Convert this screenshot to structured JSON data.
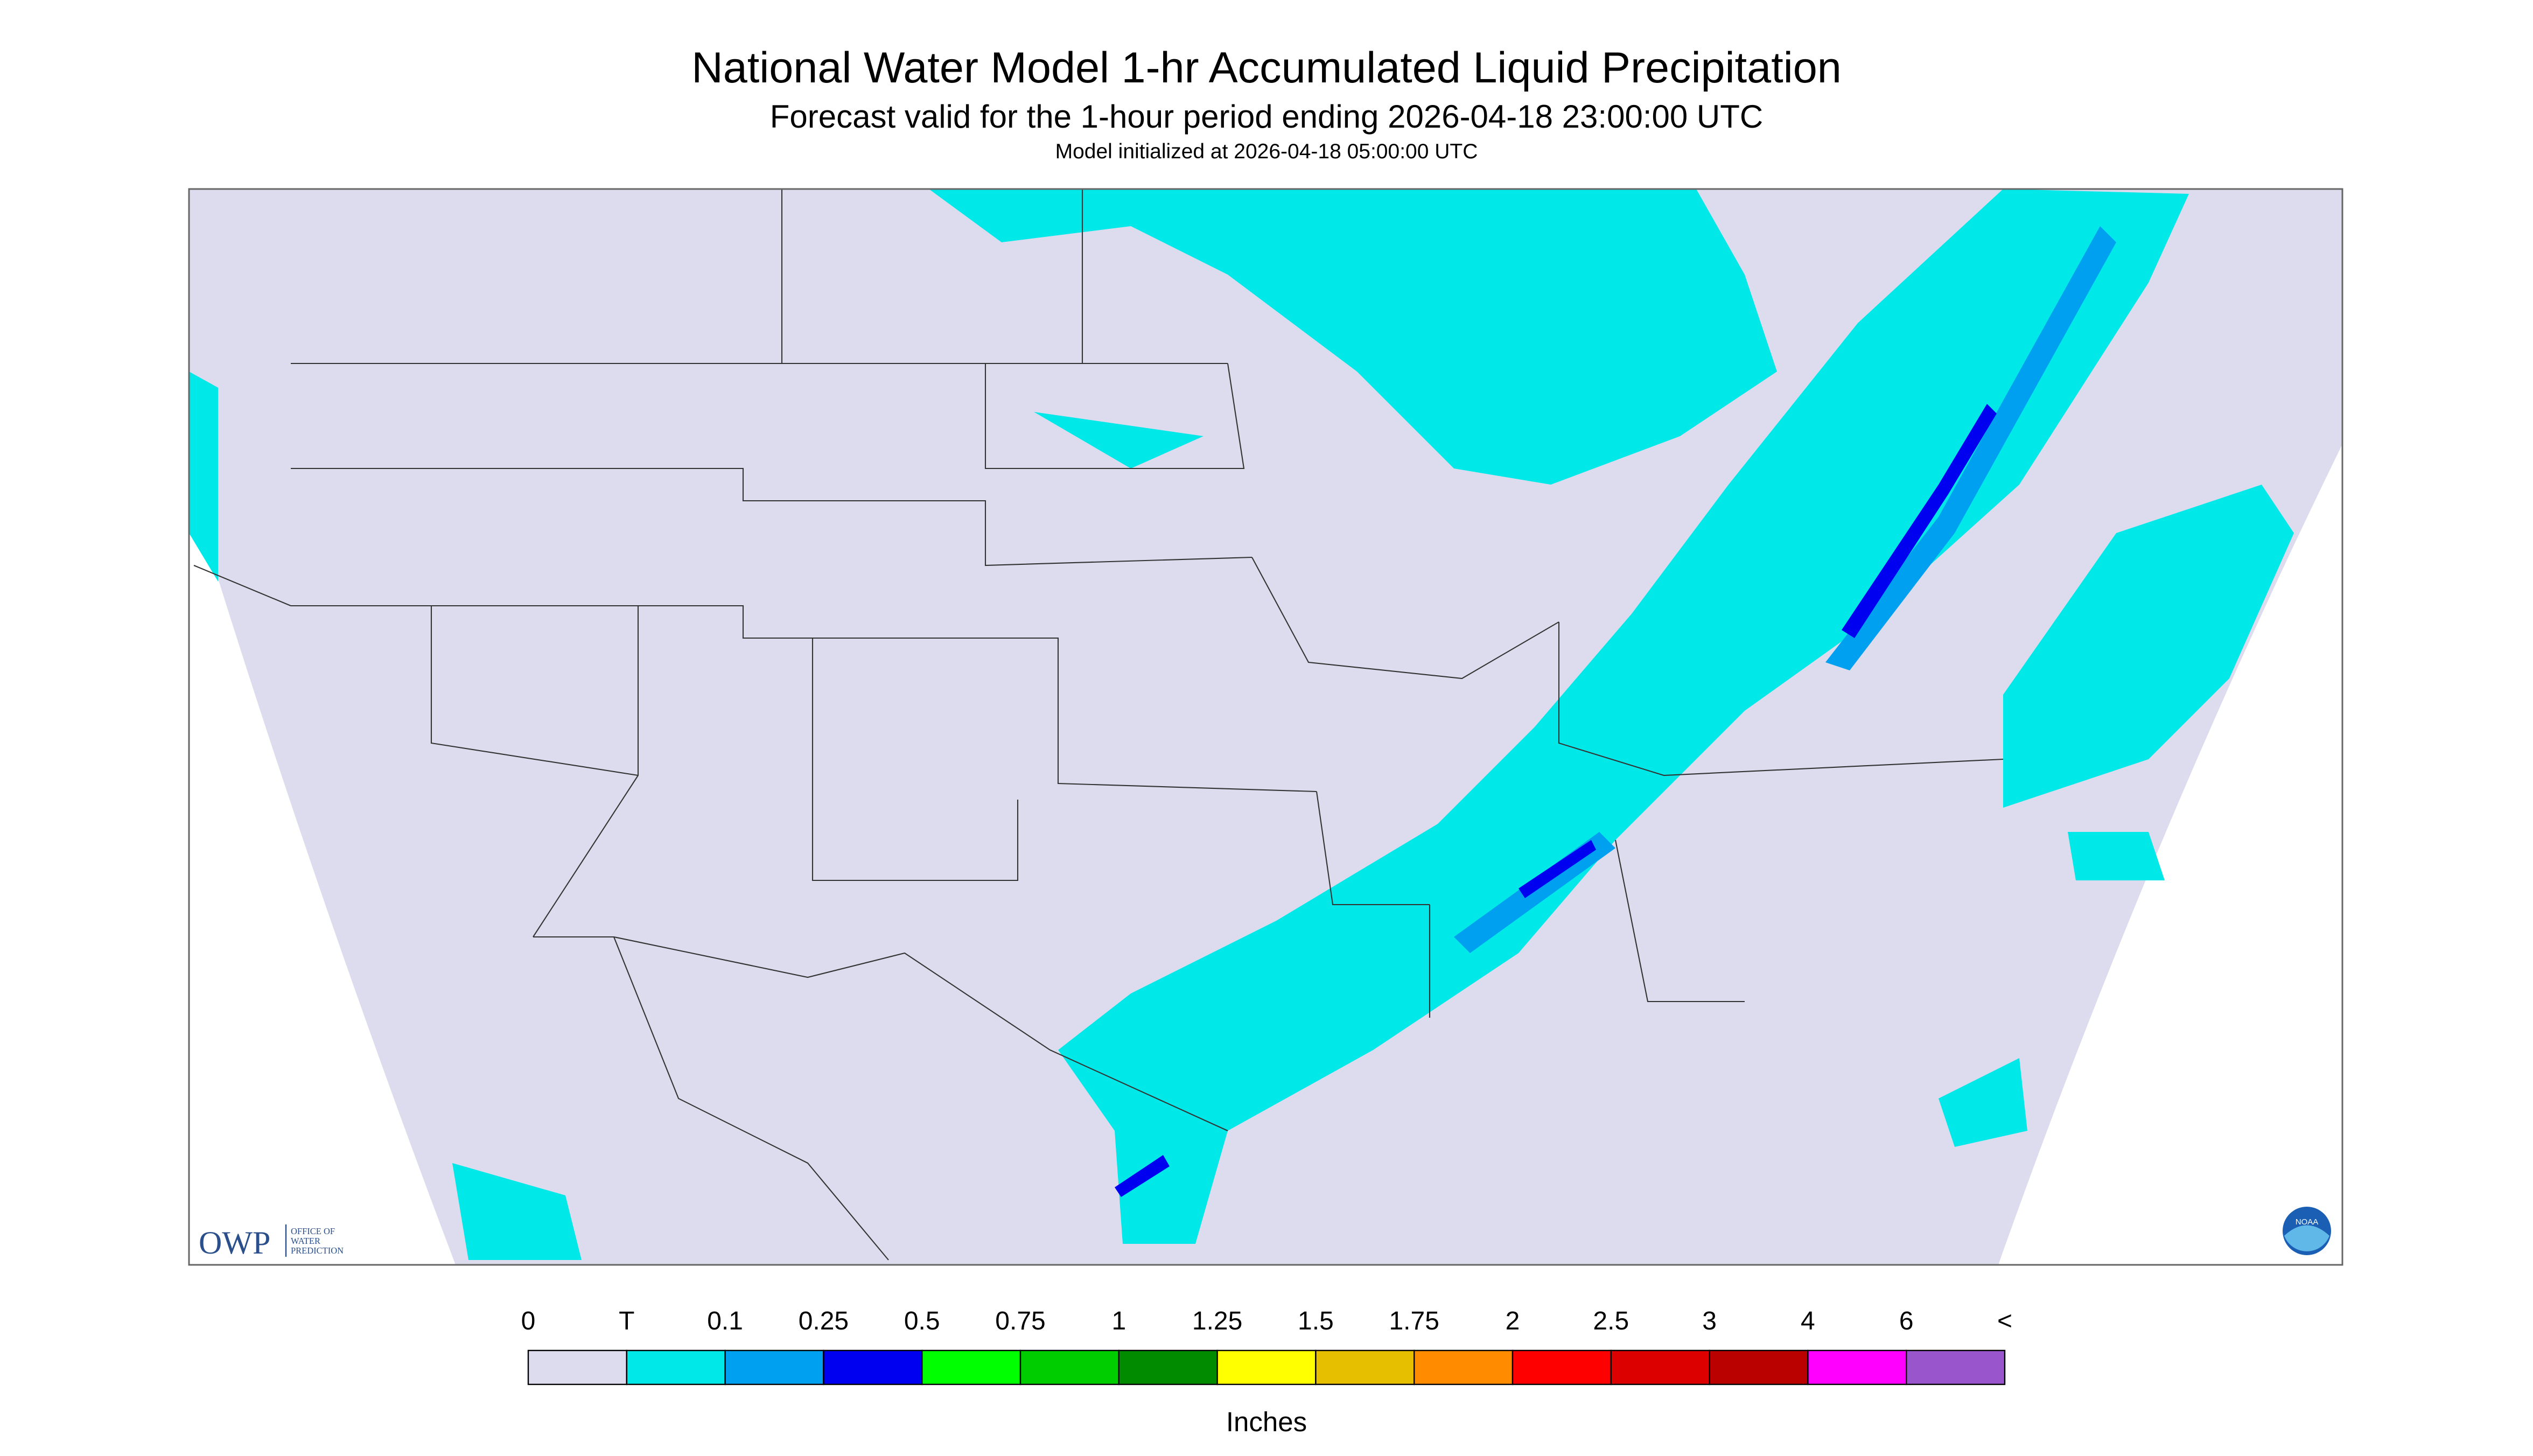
{
  "header": {
    "title": "National Water Model 1-hr Accumulated Liquid Precipitation",
    "subtitle": "Forecast valid for the 1-hour period ending 2026-04-18 23:00:00 UTC",
    "init": "Model initialized at 2026-04-18 05:00:00 UTC"
  },
  "logos": {
    "owp": "OWP",
    "owp_name": [
      "OFFICE OF",
      "WATER",
      "PREDICTION"
    ],
    "noaa": "NOAA"
  },
  "legend": {
    "labels": [
      "0",
      "T",
      "0.1",
      "0.25",
      "0.5",
      "0.75",
      "1",
      "1.25",
      "1.5",
      "1.75",
      "2",
      "2.5",
      "3",
      "4",
      "6",
      "<"
    ],
    "colors": [
      "#dcdcee",
      "#00e8e8",
      "#00a0f0",
      "#0000f0",
      "#00ff00",
      "#00cd00",
      "#008b00",
      "#ffff00",
      "#e6c000",
      "#ff8c00",
      "#ff0000",
      "#dd0000",
      "#bb0000",
      "#ff00ff",
      "#9955cc"
    ],
    "unit": "Inches"
  }
}
